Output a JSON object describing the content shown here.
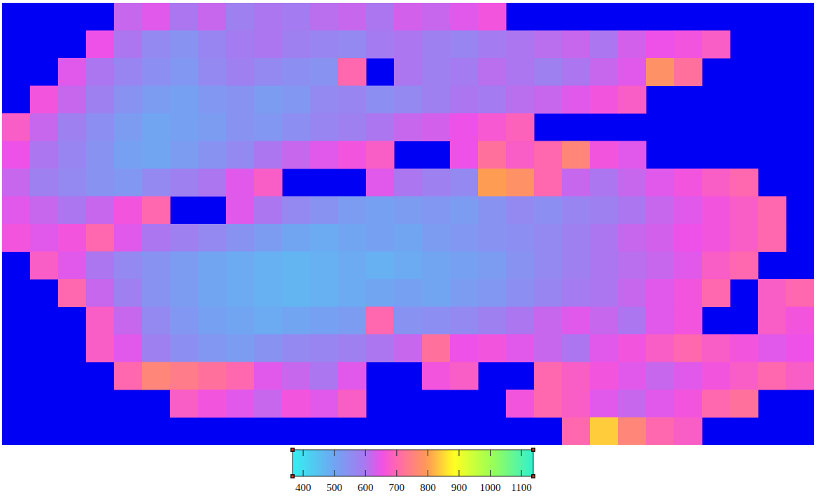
{
  "chart_data": {
    "type": "heatmap",
    "tick_labels": false,
    "values": [
      [
        null,
        null,
        null,
        null,
        620,
        640,
        600,
        620,
        580,
        600,
        590,
        610,
        620,
        600,
        630,
        620,
        640,
        660,
        null,
        null,
        null,
        null,
        null,
        null,
        null,
        null,
        null,
        null,
        null
      ],
      [
        null,
        null,
        null,
        650,
        600,
        560,
        540,
        570,
        590,
        600,
        580,
        570,
        560,
        590,
        600,
        580,
        570,
        590,
        600,
        610,
        620,
        600,
        630,
        650,
        660,
        680,
        null,
        null,
        null
      ],
      [
        null,
        null,
        640,
        600,
        570,
        550,
        530,
        560,
        580,
        560,
        550,
        540,
        700,
        null,
        600,
        580,
        590,
        610,
        600,
        580,
        600,
        620,
        640,
        780,
        720,
        null,
        null,
        null,
        null
      ],
      [
        null,
        660,
        620,
        580,
        540,
        520,
        510,
        530,
        540,
        520,
        530,
        560,
        570,
        550,
        560,
        580,
        600,
        590,
        610,
        620,
        640,
        660,
        680,
        null,
        null,
        null,
        null,
        null,
        null
      ],
      [
        680,
        620,
        580,
        550,
        520,
        500,
        510,
        520,
        540,
        530,
        550,
        570,
        580,
        600,
        620,
        630,
        650,
        670,
        690,
        null,
        null,
        null,
        null,
        null,
        null,
        null,
        null,
        null,
        null
      ],
      [
        650,
        600,
        570,
        540,
        510,
        500,
        520,
        540,
        560,
        600,
        620,
        640,
        660,
        680,
        null,
        null,
        650,
        720,
        680,
        700,
        760,
        660,
        640,
        null,
        null,
        null,
        null,
        null,
        null
      ],
      [
        620,
        580,
        560,
        540,
        530,
        560,
        580,
        600,
        640,
        680,
        null,
        null,
        null,
        640,
        600,
        580,
        560,
        800,
        780,
        700,
        620,
        600,
        620,
        640,
        660,
        680,
        700,
        null,
        null
      ],
      [
        640,
        620,
        600,
        620,
        660,
        700,
        null,
        null,
        640,
        600,
        560,
        540,
        520,
        510,
        520,
        530,
        520,
        540,
        560,
        550,
        570,
        580,
        600,
        620,
        640,
        660,
        680,
        700,
        null
      ],
      [
        660,
        640,
        660,
        700,
        640,
        600,
        580,
        560,
        540,
        520,
        500,
        490,
        500,
        510,
        500,
        520,
        530,
        540,
        550,
        560,
        580,
        600,
        620,
        630,
        650,
        660,
        680,
        700,
        null
      ],
      [
        null,
        680,
        640,
        600,
        560,
        540,
        520,
        500,
        490,
        480,
        470,
        480,
        490,
        480,
        490,
        500,
        510,
        520,
        540,
        560,
        580,
        600,
        610,
        620,
        640,
        680,
        700,
        null,
        null
      ],
      [
        null,
        null,
        700,
        620,
        580,
        540,
        520,
        500,
        490,
        480,
        470,
        480,
        490,
        500,
        510,
        500,
        520,
        530,
        550,
        570,
        590,
        600,
        620,
        640,
        660,
        700,
        null,
        680,
        700
      ],
      [
        null,
        null,
        null,
        680,
        620,
        560,
        530,
        510,
        500,
        490,
        500,
        510,
        520,
        700,
        540,
        550,
        560,
        580,
        600,
        620,
        640,
        620,
        600,
        640,
        660,
        null,
        null,
        680,
        660
      ],
      [
        null,
        null,
        null,
        680,
        640,
        580,
        550,
        530,
        520,
        540,
        560,
        570,
        580,
        600,
        620,
        720,
        650,
        660,
        640,
        620,
        600,
        640,
        660,
        680,
        700,
        680,
        660,
        640,
        650
      ],
      [
        null,
        null,
        null,
        null,
        700,
        760,
        740,
        720,
        700,
        640,
        620,
        600,
        640,
        null,
        null,
        660,
        680,
        null,
        null,
        700,
        680,
        660,
        640,
        620,
        640,
        660,
        680,
        700,
        680
      ],
      [
        null,
        null,
        null,
        null,
        null,
        null,
        680,
        660,
        640,
        620,
        660,
        640,
        680,
        null,
        null,
        null,
        null,
        null,
        660,
        700,
        680,
        640,
        620,
        640,
        660,
        700,
        720,
        null,
        null
      ],
      [
        null,
        null,
        null,
        null,
        null,
        null,
        null,
        null,
        null,
        null,
        null,
        null,
        null,
        null,
        null,
        null,
        null,
        null,
        null,
        null,
        700,
        840,
        760,
        700,
        680,
        null,
        null,
        null,
        null
      ]
    ],
    "colorbar_range": [
      366,
      1138
    ],
    "colorbar_ticks": [
      400,
      500,
      600,
      700,
      800,
      900,
      1000,
      1100
    ]
  }
}
